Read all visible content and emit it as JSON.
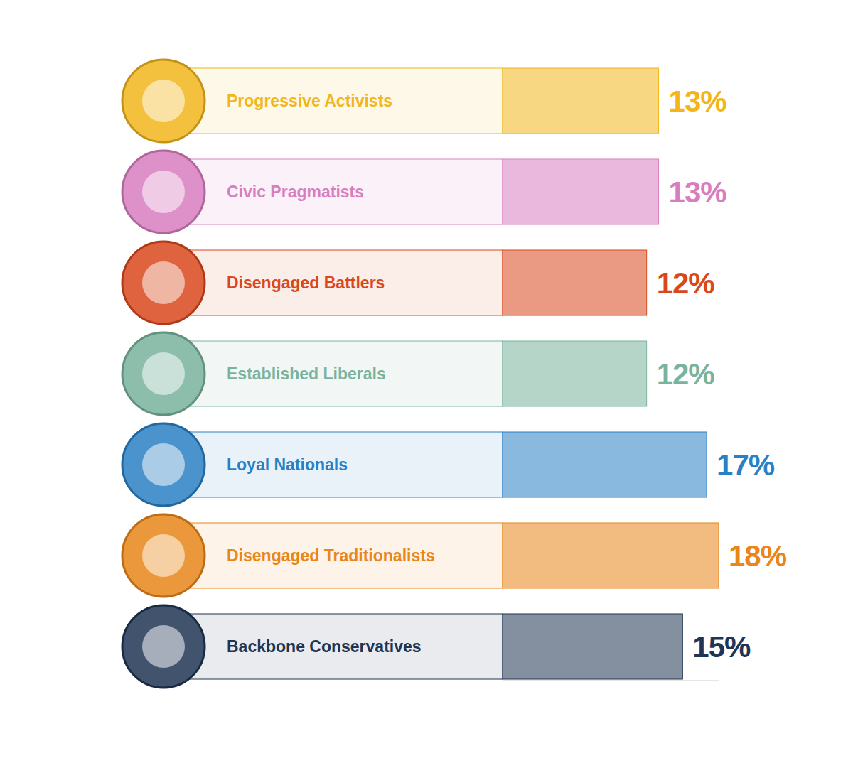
{
  "chart_data": {
    "type": "bar",
    "orientation": "horizontal",
    "categories": [
      "Progressive Activists",
      "Civic Pragmatists",
      "Disengaged Battlers",
      "Established Liberals",
      "Loyal Nationals",
      "Disengaged Traditionalists",
      "Backbone Conservatives"
    ],
    "values": [
      13,
      13,
      12,
      12,
      17,
      18,
      15
    ],
    "value_labels": [
      "13%",
      "13%",
      "12%",
      "12%",
      "17%",
      "18%",
      "15%"
    ],
    "colors": [
      "#f2b61c",
      "#d87ec0",
      "#d9481c",
      "#79b39d",
      "#2a80c4",
      "#e8861a",
      "#1f3553"
    ],
    "xlim": [
      0,
      18
    ],
    "grid": false,
    "tick_labels": false,
    "data_labels": true
  }
}
